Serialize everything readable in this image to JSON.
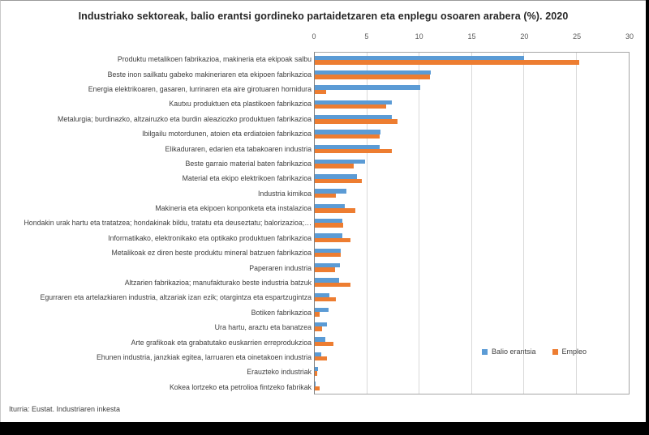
{
  "title": "Industriako sektoreak, balio erantsi gordineko partaidetzaren eta enplegu osoaren arabera (%). 2020",
  "source": "Iturria: Eustat. Industriaren inkesta",
  "colors": {
    "balio_erantsia": "#5B9BD5",
    "empleo": "#ED7D31",
    "gridline": "#D9D9D9",
    "axis_text": "#595959",
    "label_text": "#404040"
  },
  "legend": [
    {
      "label": "Balio erantsia",
      "color": "#5B9BD5"
    },
    {
      "label": "Empleo",
      "color": "#ED7D31"
    }
  ],
  "chart_data": {
    "type": "bar",
    "orientation": "horizontal",
    "title": "Industriako sektoreak, balio erantsi gordineko partaidetzaren eta enplegu osoaren arabera (%). 2020",
    "xlabel": "",
    "ylabel": "",
    "xlim": [
      0,
      30
    ],
    "xticks": [
      0,
      5,
      10,
      15,
      20,
      25,
      30
    ],
    "grid": true,
    "legend_position": "inside-lower-right",
    "categories": [
      "Produktu metalikoen fabrikazioa, makineria eta ekipoak salbu",
      "Beste inon sailkatu gabeko makineriaren eta ekipoen fabrikazioa",
      "Energia elektrikoaren, gasaren, lurrinaren eta aire girotuaren hornidura",
      "Kautxu produktuen eta plastikoen fabrikazioa",
      "Metalurgia; burdinazko, altzairuzko eta burdin aleaziozko produktuen fabrikazioa",
      "Ibilgailu motordunen, atoien eta erdiatoien fabrikazioa",
      "Elikaduraren, edarien eta tabakoaren industria",
      "Beste garraio material baten fabrikazioa",
      "Material eta ekipo elektrikoen fabrikazioa",
      "Industria kimikoa",
      "Makineria eta ekipoen konponketa eta instalazioa",
      "Hondakin urak hartu eta tratatzea; hondakinak bildu, tratatu eta deuseztatu; balorizazioa;…",
      "Informatikako, elektronikako eta optikako produktuen fabrikazioa",
      "Metalikoak ez diren beste produktu mineral batzuen fabrikazioa",
      "Paperaren industria",
      "Altzarien fabrikazioa; manufakturako beste industria batzuk",
      "Egurraren eta artelazkiaren industria, altzariak izan ezik; otargintza eta espartzugintza",
      "Botiken fabrikazioa",
      "Ura hartu, araztu eta banatzea",
      "Arte grafikoak eta grabatutako euskarrien erreprodukzioa",
      "Ehunen industria, janzkiak egitea, larruaren eta oinetakoen industria",
      "Erauzteko industriak",
      "Kokea lortzeko eta petrolioa fintzeko fabrikak"
    ],
    "series": [
      {
        "name": "Balio erantsia",
        "color": "#5B9BD5",
        "values": [
          20.0,
          11.1,
          10.1,
          7.4,
          7.4,
          6.3,
          6.2,
          4.8,
          4.0,
          3.0,
          2.9,
          2.6,
          2.6,
          2.5,
          2.4,
          2.3,
          1.4,
          1.3,
          1.2,
          1.0,
          0.6,
          0.3,
          0.1
        ]
      },
      {
        "name": "Empleo",
        "color": "#ED7D31",
        "values": [
          25.3,
          11.0,
          1.1,
          6.8,
          7.9,
          6.2,
          7.4,
          3.7,
          4.5,
          2.0,
          3.9,
          2.7,
          3.4,
          2.5,
          1.9,
          3.4,
          2.0,
          0.5,
          0.7,
          1.8,
          1.2,
          0.2,
          0.5
        ]
      }
    ]
  }
}
